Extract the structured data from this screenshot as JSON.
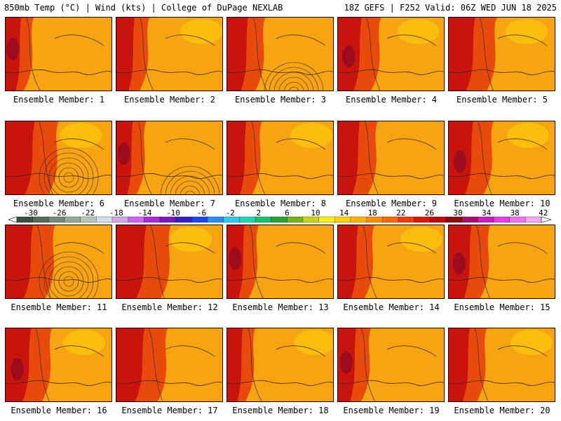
{
  "header": {
    "left": "850mb Temp (°C) | Wind (kts) | College of DuPage NEXLAB",
    "right": "18Z GEFS | F252 Valid: 06Z WED JUN 18 2025"
  },
  "members": [
    {
      "label": "Ensemble Member: 1"
    },
    {
      "label": "Ensemble Member: 2"
    },
    {
      "label": "Ensemble Member: 3"
    },
    {
      "label": "Ensemble Member: 4"
    },
    {
      "label": "Ensemble Member: 5"
    },
    {
      "label": "Ensemble Member: 6"
    },
    {
      "label": "Ensemble Member: 7"
    },
    {
      "label": "Ensemble Member: 8"
    },
    {
      "label": "Ensemble Member: 9"
    },
    {
      "label": "Ensemble Member: 10"
    },
    {
      "label": "Ensemble Member: 11"
    },
    {
      "label": "Ensemble Member: 12"
    },
    {
      "label": "Ensemble Member: 13"
    },
    {
      "label": "Ensemble Member: 14"
    },
    {
      "label": "Ensemble Member: 15"
    },
    {
      "label": "Ensemble Member: 16"
    },
    {
      "label": "Ensemble Member: 17"
    },
    {
      "label": "Ensemble Member: 18"
    },
    {
      "label": "Ensemble Member: 19"
    },
    {
      "label": "Ensemble Member: 20"
    }
  ],
  "colorbar": {
    "tick_labels": [
      "-30",
      "-26",
      "-22",
      "-18",
      "-14",
      "-10",
      "-6",
      "-2",
      "2",
      "6",
      "10",
      "14",
      "18",
      "22",
      "26",
      "30",
      "34",
      "38",
      "42"
    ],
    "colors": [
      "#3a4f3c",
      "#586b57",
      "#788a76",
      "#98a895",
      "#b9c5b7",
      "#d7dde6",
      "#cfa6e6",
      "#cc66ee",
      "#aa2bd8",
      "#7a18b8",
      "#3b1ec0",
      "#2048e0",
      "#2f8ff0",
      "#33c6ee",
      "#22d6b0",
      "#1cbf6a",
      "#2ba332",
      "#76b21c",
      "#c8d418",
      "#f5f01c",
      "#f9d012",
      "#fab40c",
      "#f98f0a",
      "#f46a08",
      "#ee3c08",
      "#d81808",
      "#b80c10",
      "#8c0a14",
      "#a0146c",
      "#c820b8",
      "#e040e0",
      "#f070f0",
      "#f2a8f2"
    ]
  },
  "map_style": {
    "base": "#f6a412",
    "hot": "#e84a0c",
    "very_hot": "#c8140c",
    "extreme": "#9c0c1c",
    "warm_light": "#fbc20e",
    "contour": "#3a2a1a"
  }
}
